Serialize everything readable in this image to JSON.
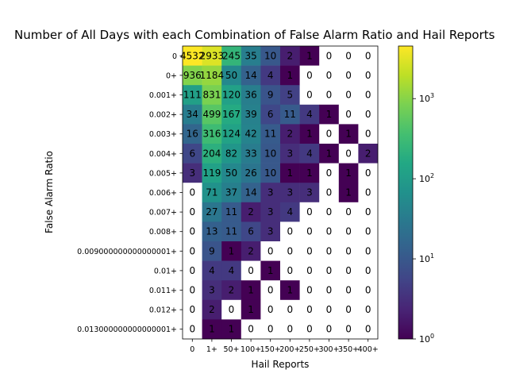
{
  "chart_data": {
    "type": "heatmap",
    "title": "Number of All Days with each Combination of False Alarm Ratio and Hail Reports",
    "xlabel": "Hail Reports",
    "ylabel": "False Alarm Ratio",
    "x_categories": [
      "0",
      "1+",
      "50+",
      "100+",
      "150+",
      "200+",
      "250+",
      "300+",
      "350+",
      "400+"
    ],
    "y_categories": [
      "0",
      "0+",
      "0.001+",
      "0.002+",
      "0.003+",
      "0.004+",
      "0.005+",
      "0.006+",
      "0.007+",
      "0.008+",
      "0.009000000000000001+",
      "0.01+",
      "0.011+",
      "0.012+",
      "0.013000000000000001+"
    ],
    "values": [
      [
        4532,
        2933,
        245,
        35,
        10,
        2,
        1,
        0,
        0,
        0
      ],
      [
        936,
        1184,
        50,
        14,
        4,
        1,
        0,
        0,
        0,
        0
      ],
      [
        111,
        831,
        120,
        36,
        9,
        5,
        0,
        0,
        0,
        0
      ],
      [
        34,
        499,
        167,
        39,
        6,
        11,
        4,
        1,
        0,
        0
      ],
      [
        16,
        316,
        124,
        42,
        11,
        2,
        1,
        0,
        1,
        0
      ],
      [
        6,
        204,
        82,
        33,
        10,
        3,
        4,
        1,
        0,
        2
      ],
      [
        3,
        119,
        50,
        26,
        10,
        1,
        1,
        0,
        1,
        0
      ],
      [
        0,
        71,
        37,
        14,
        3,
        3,
        3,
        0,
        1,
        0
      ],
      [
        0,
        27,
        11,
        2,
        3,
        4,
        0,
        0,
        0,
        0
      ],
      [
        0,
        13,
        11,
        6,
        3,
        0,
        0,
        0,
        0,
        0
      ],
      [
        0,
        9,
        1,
        2,
        0,
        0,
        0,
        0,
        0,
        0
      ],
      [
        0,
        4,
        4,
        0,
        1,
        0,
        0,
        0,
        0,
        0
      ],
      [
        0,
        3,
        2,
        1,
        0,
        1,
        0,
        0,
        0,
        0
      ],
      [
        0,
        2,
        0,
        1,
        0,
        0,
        0,
        0,
        0,
        0
      ],
      [
        0,
        1,
        1,
        0,
        0,
        0,
        0,
        0,
        0,
        0
      ]
    ],
    "color_scale": "log",
    "colormap": "viridis",
    "vmin": 1,
    "vmax": 4532,
    "colorbar_ticks": [
      {
        "value": 1,
        "base": "10",
        "exp": "0"
      },
      {
        "value": 10,
        "base": "10",
        "exp": "1"
      },
      {
        "value": 100,
        "base": "10",
        "exp": "2"
      },
      {
        "value": 1000,
        "base": "10",
        "exp": "3"
      }
    ],
    "zero_cell_color": "#ffffff",
    "grid": false,
    "legend": "colorbar-right"
  }
}
